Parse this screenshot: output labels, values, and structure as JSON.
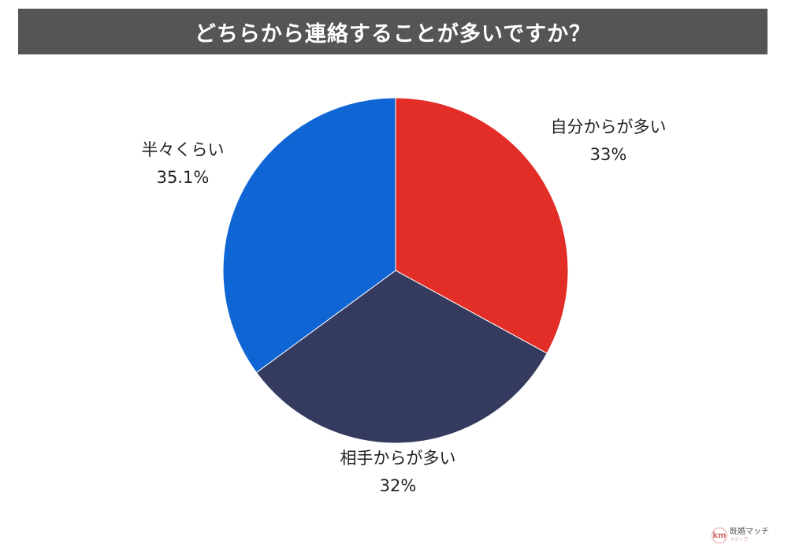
{
  "header": {
    "title": "どちらから連絡することが多いですか？"
  },
  "chart_data": {
    "type": "pie",
    "title": "どちらから連絡することが多いですか？",
    "start": "12 o'clock, clockwise",
    "slices": [
      {
        "label": "自分からが多い",
        "value": 33,
        "value_label": "33%",
        "color": "#e32d27"
      },
      {
        "label": "相手からが多い",
        "value": 32,
        "value_label": "32%",
        "color": "#343b5e"
      },
      {
        "label": "半々くらい",
        "value": 35.1,
        "value_label": "35.1%",
        "color": "#1065d5"
      }
    ],
    "legend": "none",
    "labels": "outside"
  },
  "logo": {
    "mark": "km",
    "text": "既婚マッチ",
    "sub": "メディア"
  }
}
